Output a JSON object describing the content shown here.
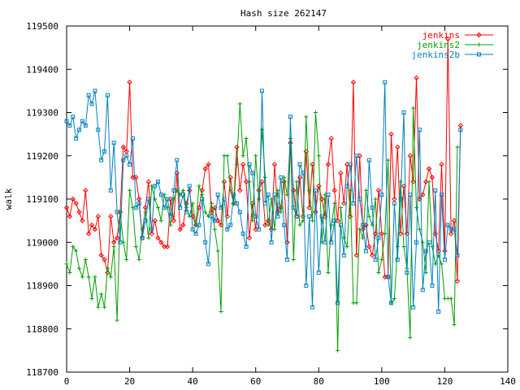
{
  "chart_data": {
    "type": "line",
    "title": "Hash size 262147",
    "xlabel": "",
    "ylabel": "walk",
    "xlim": [
      0,
      140
    ],
    "ylim": [
      118700,
      119500
    ],
    "xticks": [
      0,
      20,
      40,
      60,
      80,
      100,
      120,
      140
    ],
    "yticks": [
      118700,
      118800,
      118900,
      119000,
      119100,
      119200,
      119300,
      119400,
      119500
    ],
    "grid": false,
    "legend_position": "top-right",
    "series": [
      {
        "name": "jenkins",
        "color": "#ff0000",
        "marker": "diamond",
        "values": [
          119080,
          119060,
          119100,
          119090,
          119070,
          119050,
          119120,
          119020,
          119040,
          119030,
          119060,
          118970,
          118960,
          118930,
          119060,
          119000,
          119010,
          119070,
          119220,
          119210,
          119370,
          119150,
          119150,
          119100,
          119010,
          119080,
          119140,
          119020,
          119050,
          119010,
          119000,
          118990,
          118990,
          119100,
          119050,
          119160,
          119030,
          119040,
          119090,
          119120,
          119060,
          119040,
          119080,
          119120,
          119170,
          119180,
          119070,
          119080,
          119050,
          119040,
          119140,
          119060,
          119150,
          119090,
          119220,
          119120,
          119180,
          119140,
          119010,
          119090,
          119030,
          119120,
          119140,
          119040,
          119050,
          119030,
          119180,
          119070,
          119080,
          119140,
          119000,
          119230,
          119120,
          119060,
          119150,
          119060,
          119210,
          119080,
          119180,
          119070,
          119130,
          119100,
          119060,
          119180,
          119240,
          119120,
          119050,
          119160,
          119090,
          119180,
          119060,
          119370,
          118970,
          119200,
          119030,
          119040,
          118990,
          118970,
          119020,
          119120,
          119020,
          118920,
          118920,
          119250,
          119100,
          119220,
          119020,
          119130,
          119020,
          119200,
          119140,
          119380,
          119100,
          119110,
          119140,
          119170,
          119150,
          119020,
          118980,
          119180,
          118980,
          119470,
          119020,
          119050,
          118910,
          119270
        ]
      },
      {
        "name": "jenkins2",
        "color": "#00a000",
        "marker": "plus",
        "values": [
          118950,
          118930,
          118990,
          118980,
          118940,
          118920,
          118960,
          118920,
          118870,
          118920,
          118850,
          118880,
          118850,
          118940,
          118920,
          118990,
          118820,
          119070,
          119000,
          118960,
          119120,
          119080,
          118990,
          118960,
          119030,
          119070,
          119010,
          119130,
          119100,
          119080,
          119050,
          119110,
          119080,
          119040,
          119100,
          119120,
          119110,
          119120,
          119080,
          119060,
          119090,
          119040,
          119130,
          119110,
          119070,
          119060,
          119090,
          119030,
          118980,
          118840,
          119200,
          119200,
          119120,
          119090,
          119180,
          119320,
          119200,
          119240,
          119140,
          119050,
          119200,
          119100,
          119260,
          119150,
          119040,
          119100,
          119030,
          119120,
          119070,
          119150,
          119110,
          119240,
          118960,
          119140,
          119040,
          119050,
          119290,
          119120,
          119050,
          119300,
          119200,
          119000,
          119110,
          118930,
          119040,
          119090,
          118750,
          119080,
          119010,
          118990,
          119120,
          118860,
          118860,
          119030,
          119010,
          119120,
          119060,
          119040,
          119100,
          118930,
          118960,
          119020,
          119190,
          118860,
          118870,
          118990,
          119140,
          118990,
          118940,
          118780,
          119310,
          119080,
          119030,
          119000,
          118930,
          119140,
          118990,
          118950,
          118970,
          118950,
          118870,
          118870,
          118870,
          118810,
          119220
        ]
      },
      {
        "name": "jenkins2b",
        "color": "#0080c0",
        "marker": "square",
        "values": [
          119280,
          119270,
          119290,
          119240,
          119260,
          119280,
          119270,
          119340,
          119320,
          119350,
          119260,
          119190,
          119210,
          119340,
          119120,
          119230,
          119070,
          119000,
          119190,
          119200,
          119180,
          119240,
          119080,
          119090,
          119010,
          119050,
          119100,
          119030,
          119130,
          119140,
          119110,
          119080,
          119100,
          119060,
          119120,
          119190,
          119080,
          119110,
          119070,
          119130,
          119030,
          119020,
          119040,
          119100,
          119000,
          118950,
          119060,
          119050,
          119110,
          119080,
          119100,
          119030,
          119040,
          119110,
          119090,
          119070,
          119020,
          118990,
          119180,
          119160,
          119060,
          119030,
          119350,
          119090,
          119110,
          119000,
          119110,
          119060,
          119150,
          119040,
          118960,
          119290,
          119080,
          119060,
          119180,
          119160,
          118900,
          119060,
          118850,
          119120,
          118930,
          119060,
          119000,
          119110,
          119000,
          119050,
          118860,
          119040,
          118970,
          119130,
          119180,
          119090,
          119200,
          119100,
          119040,
          118980,
          119190,
          119080,
          118960,
          119010,
          119110,
          119370,
          118920,
          118860,
          119090,
          118960,
          119100,
          119300,
          118930,
          119110,
          118850,
          119000,
          119260,
          118890,
          118980,
          119000,
          118900,
          119120,
          118840,
          119110,
          118960,
          119040,
          119030,
          119030,
          118970,
          119260
        ]
      }
    ]
  }
}
